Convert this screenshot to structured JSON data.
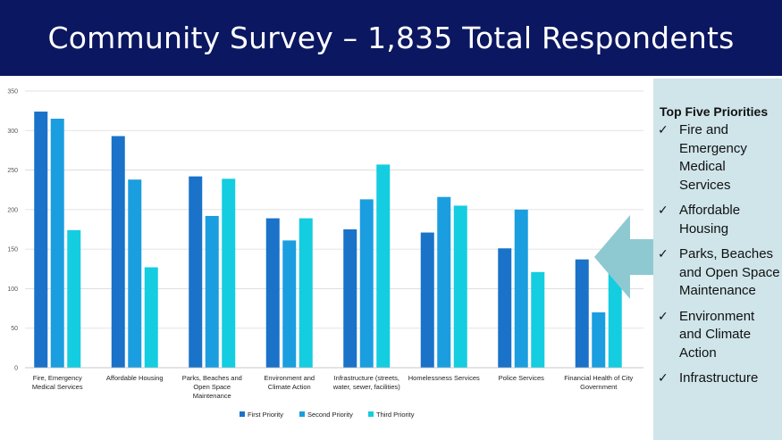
{
  "header": {
    "title": "Community Survey – 1,835 Total Respondents"
  },
  "colors": {
    "header_bg": "#0b1760",
    "panel_bg": "#cfe5ea",
    "arrow": "#8ec9d1"
  },
  "panel": {
    "title": "Top Five Priorities",
    "check_icon": "check-icon",
    "items": [
      "Fire and Emergency Medical Services",
      "Affordable Housing",
      "Parks, Beaches and Open Space Maintenance",
      "Environment and Climate Action",
      "Infrastructure"
    ]
  },
  "chart_data": {
    "type": "bar",
    "categories": [
      [
        "Fire, Emergency",
        "Medical Services"
      ],
      [
        "Affordable Housing"
      ],
      [
        "Parks, Beaches and",
        "Open Space",
        "Maintenance"
      ],
      [
        "Environment and",
        "Climate Action"
      ],
      [
        "Infrastructure (streets,",
        "water, sewer, facilities)"
      ],
      [
        "Homelessness Services"
      ],
      [
        "Police Services"
      ],
      [
        "Financial Health of City",
        "Government"
      ]
    ],
    "series": [
      {
        "name": "First Priority",
        "color": "#1a72c9",
        "values": [
          324,
          293,
          242,
          189,
          175,
          171,
          151,
          137
        ]
      },
      {
        "name": "Second Priority",
        "color": "#1a9ee0",
        "values": [
          315,
          238,
          192,
          161,
          213,
          216,
          200,
          70
        ]
      },
      {
        "name": "Third Priority",
        "color": "#14cde0",
        "values": [
          174,
          127,
          239,
          189,
          257,
          205,
          121,
          122
        ]
      }
    ],
    "yticks": [
      0,
      50,
      100,
      150,
      200,
      250,
      300,
      350
    ],
    "ylim": [
      0,
      350
    ],
    "grid": true,
    "legend_position": "bottom-center",
    "title": "",
    "xlabel": "",
    "ylabel": ""
  }
}
